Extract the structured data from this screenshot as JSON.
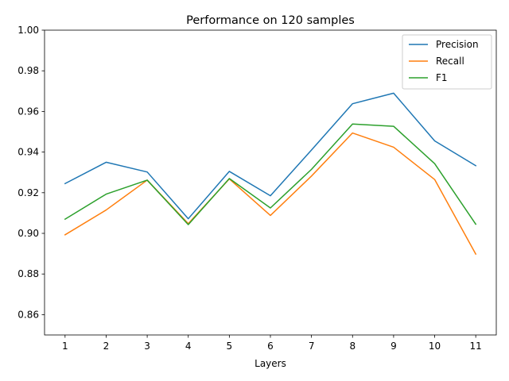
{
  "chart_data": {
    "type": "line",
    "title": "Performance on 120 samples",
    "xlabel": "Layers",
    "ylabel": "",
    "x": [
      1,
      2,
      3,
      4,
      5,
      6,
      7,
      8,
      9,
      10,
      11
    ],
    "xticks": [
      "1",
      "2",
      "3",
      "4",
      "5",
      "6",
      "7",
      "8",
      "9",
      "10",
      "11"
    ],
    "ylim": [
      0.85,
      1.0
    ],
    "yticks": [
      "0.86",
      "0.88",
      "0.90",
      "0.92",
      "0.94",
      "0.96",
      "0.98",
      "1.00"
    ],
    "legend_position": "top-right",
    "grid": false,
    "series": [
      {
        "name": "Precision",
        "color": "#1f77b4",
        "values": [
          0.9245,
          0.935,
          0.9302,
          0.9072,
          0.9305,
          0.9185,
          0.941,
          0.9638,
          0.969,
          0.9455,
          0.9333
        ]
      },
      {
        "name": "Recall",
        "color": "#ff7f0e",
        "values": [
          0.8993,
          0.9115,
          0.9262,
          0.9048,
          0.9268,
          0.9088,
          0.9282,
          0.9494,
          0.9424,
          0.9265,
          0.8898
        ]
      },
      {
        "name": "F1",
        "color": "#2ca02c",
        "values": [
          0.907,
          0.9193,
          0.9262,
          0.9043,
          0.927,
          0.9125,
          0.9315,
          0.9538,
          0.9527,
          0.9343,
          0.9045
        ]
      }
    ]
  }
}
